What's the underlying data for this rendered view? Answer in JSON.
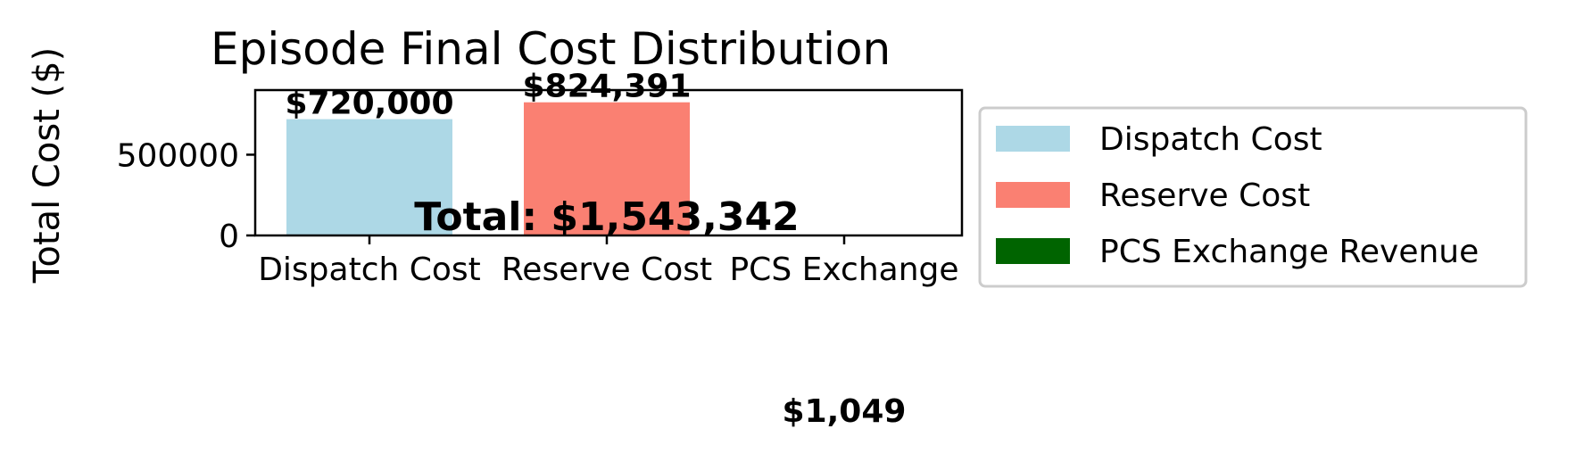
{
  "chart_data": {
    "type": "bar",
    "title": "Episode Final Cost Distribution",
    "xlabel": "",
    "ylabel": "Total Cost ($)",
    "categories": [
      "Dispatch Cost",
      "Reserve Cost",
      "PCS Exchange"
    ],
    "values": [
      720000,
      824391,
      -1049
    ],
    "value_labels": [
      "$720,000",
      "$824,391",
      "$1,049"
    ],
    "colors": [
      "#add8e6",
      "#fa8072",
      "#006400"
    ],
    "ylim": [
      0,
      900000
    ],
    "yticks": [
      0,
      500000
    ],
    "ytick_labels": [
      "0",
      "500000"
    ],
    "grid": false,
    "annotation": "Total: $1,543,342",
    "legend": {
      "placement": "right",
      "entries": [
        {
          "label": "Dispatch Cost",
          "color": "#add8e6"
        },
        {
          "label": "Reserve Cost",
          "color": "#fa8072"
        },
        {
          "label": "PCS Exchange Revenue",
          "color": "#006400"
        }
      ]
    }
  }
}
